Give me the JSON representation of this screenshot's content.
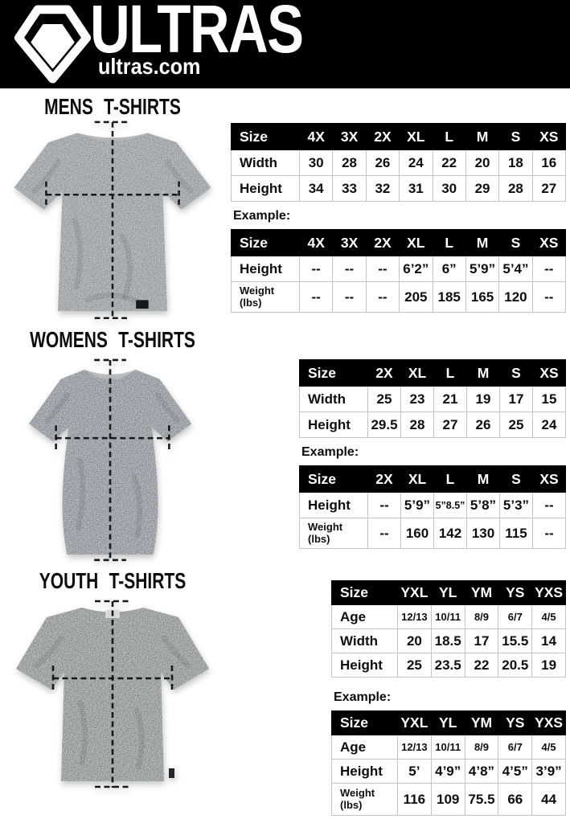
{
  "header": {
    "brand": "ULTRAS",
    "site": "ultras.com",
    "logo_icon": "pentagon-shield-logo",
    "bg_color": "#000000",
    "text_color": "#ffffff"
  },
  "colors": {
    "table_header_bg": "#000000",
    "table_header_text": "#ffffff",
    "table_border": "#c4c4c4",
    "mens_shirt": "#878e93",
    "womens_shirt": "#7b838b",
    "youth_shirt": "#7d8480"
  },
  "sections": [
    {
      "id": "mens",
      "heading": "MENS T-SHIRTS",
      "shirt_image": "mens-grey-tshirt-photo",
      "example_label": "Example:",
      "size_table": {
        "columns": [
          "Size",
          "4X",
          "3X",
          "2X",
          "XL",
          "L",
          "M",
          "S",
          "XS"
        ],
        "rows": [
          {
            "label": "Width",
            "values": [
              "30",
              "28",
              "26",
              "24",
              "22",
              "20",
              "18",
              "16"
            ]
          },
          {
            "label": "Height",
            "values": [
              "34",
              "33",
              "32",
              "31",
              "30",
              "29",
              "28",
              "27"
            ]
          }
        ]
      },
      "example_table": {
        "columns": [
          "Size",
          "4X",
          "3X",
          "2X",
          "XL",
          "L",
          "M",
          "S",
          "XS"
        ],
        "rows": [
          {
            "label": "Height",
            "values": [
              "--",
              "--",
              "--",
              "6’2”",
              "6”",
              "5’9”",
              "5’4”",
              "--"
            ]
          },
          {
            "label": "Weight\n(lbs)",
            "values": [
              "--",
              "--",
              "--",
              "205",
              "185",
              "165",
              "120",
              "--"
            ]
          }
        ]
      }
    },
    {
      "id": "womens",
      "heading": "WOMENS T-SHIRTS",
      "shirt_image": "womens-grey-tshirt-photo",
      "example_label": "Example:",
      "size_table": {
        "columns": [
          "Size",
          "2X",
          "XL",
          "L",
          "M",
          "S",
          "XS"
        ],
        "rows": [
          {
            "label": "Width",
            "values": [
              "25",
              "23",
              "21",
              "19",
              "17",
              "15"
            ]
          },
          {
            "label": "Height",
            "values": [
              "29.5",
              "28",
              "27",
              "26",
              "25",
              "24"
            ]
          }
        ]
      },
      "example_table": {
        "columns": [
          "Size",
          "2X",
          "XL",
          "L",
          "M",
          "S",
          "XS"
        ],
        "rows": [
          {
            "label": "Height",
            "values": [
              "--",
              "5’9”",
              "5”8.5”",
              "5’8”",
              "5’3”",
              "--"
            ]
          },
          {
            "label": "Weight\n(lbs)",
            "values": [
              "--",
              "160",
              "142",
              "130",
              "115",
              "--"
            ]
          }
        ]
      }
    },
    {
      "id": "youth",
      "heading": "YOUTH T-SHIRTS",
      "shirt_image": "youth-grey-tshirt-photo",
      "example_label": "Example:",
      "size_table": {
        "columns": [
          "Size",
          "YXL",
          "YL",
          "YM",
          "YS",
          "YXS"
        ],
        "rows": [
          {
            "label": "Age",
            "values": [
              "12/13",
              "10/11",
              "8/9",
              "6/7",
              "4/5"
            ]
          },
          {
            "label": "Width",
            "values": [
              "20",
              "18.5",
              "17",
              "15.5",
              "14"
            ]
          },
          {
            "label": "Height",
            "values": [
              "25",
              "23.5",
              "22",
              "20.5",
              "19"
            ]
          }
        ]
      },
      "example_table": {
        "columns": [
          "Size",
          "YXL",
          "YL",
          "YM",
          "YS",
          "YXS"
        ],
        "rows": [
          {
            "label": "Age",
            "values": [
              "12/13",
              "10/11",
              "8/9",
              "6/7",
              "4/5"
            ]
          },
          {
            "label": "Height",
            "values": [
              "5’",
              "4’9”",
              "4’8”",
              "4’5”",
              "3’9”"
            ]
          },
          {
            "label": "Weight\n(lbs)",
            "values": [
              "116",
              "109",
              "75.5",
              "66",
              "44"
            ]
          }
        ]
      }
    }
  ]
}
